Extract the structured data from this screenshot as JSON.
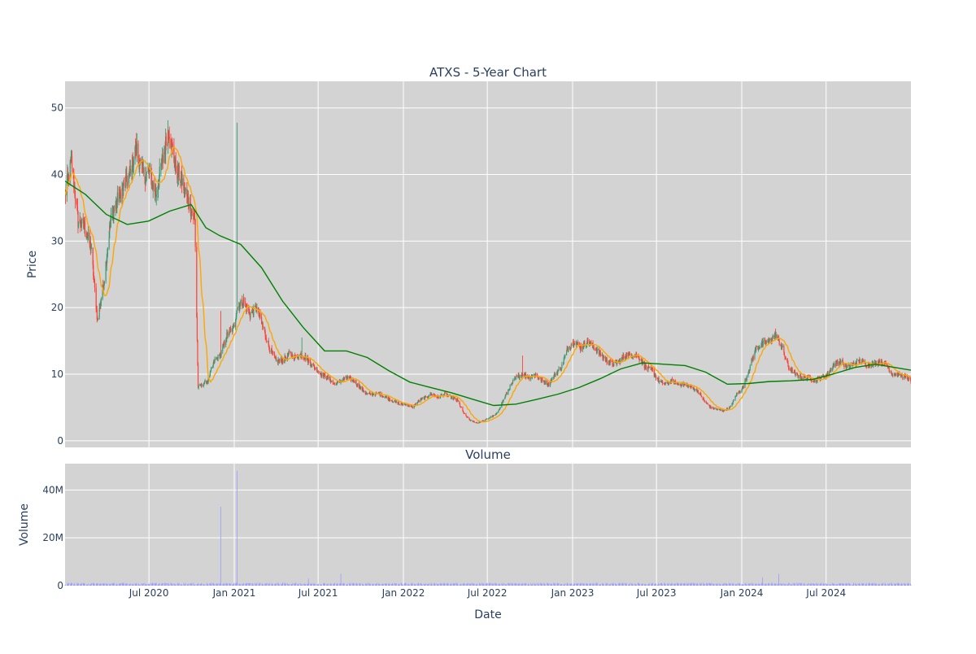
{
  "chart_data": {
    "type": "candlestick",
    "title": "ATXS - 5-Year Chart",
    "colors": {
      "up": "#3d9970",
      "down": "#ff4136",
      "ma_short": "#ffa500",
      "ma_long": "#008000",
      "volume": "#9d9dff",
      "plot_bg": "#d3d3d3",
      "grid": "#ffffff",
      "text": "#2a3f5f"
    },
    "price_panel": {
      "ylabel": "Price",
      "ylim": [
        -1,
        54
      ],
      "yticks": [
        0,
        10,
        20,
        30,
        40,
        50
      ],
      "anchors": [
        [
          "2020-01-02",
          37
        ],
        [
          "2020-01-16",
          42
        ],
        [
          "2020-01-30",
          33
        ],
        [
          "2020-02-13",
          32
        ],
        [
          "2020-02-27",
          29
        ],
        [
          "2020-03-12",
          18
        ],
        [
          "2020-03-26",
          24
        ],
        [
          "2020-04-09",
          33
        ],
        [
          "2020-04-23",
          36
        ],
        [
          "2020-05-07",
          38
        ],
        [
          "2020-05-21",
          40
        ],
        [
          "2020-06-04",
          44
        ],
        [
          "2020-06-18",
          40
        ],
        [
          "2020-07-02",
          40
        ],
        [
          "2020-07-16",
          37
        ],
        [
          "2020-07-30",
          42
        ],
        [
          "2020-08-13",
          47
        ],
        [
          "2020-08-27",
          41
        ],
        [
          "2020-09-10",
          39
        ],
        [
          "2020-09-24",
          36
        ],
        [
          "2020-10-08",
          33
        ],
        [
          "2020-10-15",
          8
        ],
        [
          "2020-11-05",
          9
        ],
        [
          "2020-11-19",
          12
        ],
        [
          "2020-12-03",
          13
        ],
        [
          "2020-12-17",
          16
        ],
        [
          "2020-12-31",
          17
        ],
        [
          "2021-01-07",
          20
        ],
        [
          "2021-01-21",
          21
        ],
        [
          "2021-02-04",
          19
        ],
        [
          "2021-02-18",
          20
        ],
        [
          "2021-03-04",
          17
        ],
        [
          "2021-03-18",
          14
        ],
        [
          "2021-04-01",
          12
        ],
        [
          "2021-04-15",
          12
        ],
        [
          "2021-04-29",
          13
        ],
        [
          "2021-05-13",
          12.5
        ],
        [
          "2021-05-27",
          13
        ],
        [
          "2021-06-10",
          12
        ],
        [
          "2021-06-24",
          11
        ],
        [
          "2021-07-08",
          10
        ],
        [
          "2021-07-22",
          9.5
        ],
        [
          "2021-08-05",
          8.5
        ],
        [
          "2021-08-19",
          9
        ],
        [
          "2021-09-02",
          9.5
        ],
        [
          "2021-09-16",
          9
        ],
        [
          "2021-09-30",
          8
        ],
        [
          "2021-10-14",
          7
        ],
        [
          "2021-10-28",
          7
        ],
        [
          "2021-11-11",
          7
        ],
        [
          "2021-11-25",
          6.5
        ],
        [
          "2021-12-09",
          6
        ],
        [
          "2021-12-23",
          5.5
        ],
        [
          "2022-01-06",
          5.5
        ],
        [
          "2022-01-20",
          5
        ],
        [
          "2022-02-03",
          6
        ],
        [
          "2022-02-17",
          6.5
        ],
        [
          "2022-03-03",
          7
        ],
        [
          "2022-03-17",
          6.5
        ],
        [
          "2022-03-31",
          7
        ],
        [
          "2022-04-14",
          6.5
        ],
        [
          "2022-04-28",
          6
        ],
        [
          "2022-05-12",
          4
        ],
        [
          "2022-05-26",
          3
        ],
        [
          "2022-06-09",
          2.7
        ],
        [
          "2022-06-23",
          3
        ],
        [
          "2022-07-07",
          3.5
        ],
        [
          "2022-07-21",
          4
        ],
        [
          "2022-08-04",
          6
        ],
        [
          "2022-08-18",
          8
        ],
        [
          "2022-09-01",
          9.5
        ],
        [
          "2022-09-15",
          10
        ],
        [
          "2022-09-29",
          9.5
        ],
        [
          "2022-10-13",
          10
        ],
        [
          "2022-10-27",
          9
        ],
        [
          "2022-11-10",
          8.5
        ],
        [
          "2022-11-24",
          10
        ],
        [
          "2022-12-08",
          11
        ],
        [
          "2022-12-22",
          14
        ],
        [
          "2023-01-05",
          15
        ],
        [
          "2023-01-19",
          14
        ],
        [
          "2023-02-02",
          15
        ],
        [
          "2023-02-16",
          14
        ],
        [
          "2023-03-02",
          13
        ],
        [
          "2023-03-16",
          12
        ],
        [
          "2023-03-30",
          11.5
        ],
        [
          "2023-04-13",
          12
        ],
        [
          "2023-04-27",
          13
        ],
        [
          "2023-05-11",
          13
        ],
        [
          "2023-05-25",
          12.5
        ],
        [
          "2023-06-08",
          11
        ],
        [
          "2023-06-22",
          10.5
        ],
        [
          "2023-07-06",
          9
        ],
        [
          "2023-07-20",
          8.5
        ],
        [
          "2023-08-03",
          9
        ],
        [
          "2023-08-17",
          8.5
        ],
        [
          "2023-08-31",
          8.5
        ],
        [
          "2023-09-14",
          8
        ],
        [
          "2023-09-28",
          7.5
        ],
        [
          "2023-10-12",
          6
        ],
        [
          "2023-10-26",
          5
        ],
        [
          "2023-11-09",
          4.7
        ],
        [
          "2023-11-23",
          4.5
        ],
        [
          "2023-12-07",
          5
        ],
        [
          "2023-12-21",
          7
        ],
        [
          "2024-01-04",
          8
        ],
        [
          "2024-01-18",
          11
        ],
        [
          "2024-02-01",
          14
        ],
        [
          "2024-02-15",
          14.5
        ],
        [
          "2024-02-29",
          15
        ],
        [
          "2024-03-14",
          16
        ],
        [
          "2024-03-28",
          14
        ],
        [
          "2024-04-11",
          11
        ],
        [
          "2024-04-25",
          10
        ],
        [
          "2024-05-09",
          9.5
        ],
        [
          "2024-05-23",
          9.5
        ],
        [
          "2024-06-06",
          9
        ],
        [
          "2024-06-20",
          9.5
        ],
        [
          "2024-07-04",
          10
        ],
        [
          "2024-07-18",
          11.5
        ],
        [
          "2024-08-01",
          12
        ],
        [
          "2024-08-15",
          11
        ],
        [
          "2024-08-29",
          11.5
        ],
        [
          "2024-09-12",
          12
        ],
        [
          "2024-09-26",
          11.5
        ],
        [
          "2024-10-10",
          11.5
        ],
        [
          "2024-10-24",
          12
        ],
        [
          "2024-11-07",
          11.5
        ],
        [
          "2024-11-21",
          10
        ],
        [
          "2024-12-05",
          10
        ],
        [
          "2024-12-19",
          9.5
        ],
        [
          "2024-12-31",
          9
        ]
      ],
      "ma_long": [
        [
          "2020-01-02",
          39
        ],
        [
          "2020-02-15",
          37
        ],
        [
          "2020-03-31",
          34
        ],
        [
          "2020-05-15",
          32.5
        ],
        [
          "2020-06-30",
          33
        ],
        [
          "2020-08-15",
          34.5
        ],
        [
          "2020-09-30",
          35.5
        ],
        [
          "2020-11-01",
          32
        ],
        [
          "2020-12-01",
          30.8
        ],
        [
          "2021-01-15",
          29.5
        ],
        [
          "2021-03-01",
          26
        ],
        [
          "2021-04-15",
          21
        ],
        [
          "2021-05-30",
          17
        ],
        [
          "2021-07-15",
          13.5
        ],
        [
          "2021-08-31",
          13.5
        ],
        [
          "2021-10-15",
          12.5
        ],
        [
          "2021-12-01",
          10.5
        ],
        [
          "2022-01-15",
          8.8
        ],
        [
          "2022-03-01",
          8
        ],
        [
          "2022-04-15",
          7.2
        ],
        [
          "2022-06-01",
          6.2
        ],
        [
          "2022-07-15",
          5.3
        ],
        [
          "2022-09-01",
          5.5
        ],
        [
          "2022-10-15",
          6.2
        ],
        [
          "2022-12-01",
          7
        ],
        [
          "2023-01-15",
          8
        ],
        [
          "2023-03-01",
          9.3
        ],
        [
          "2023-04-15",
          10.8
        ],
        [
          "2023-06-01",
          11.7
        ],
        [
          "2023-07-15",
          11.5
        ],
        [
          "2023-09-01",
          11.3
        ],
        [
          "2023-10-15",
          10.3
        ],
        [
          "2023-12-01",
          8.5
        ],
        [
          "2024-01-15",
          8.6
        ],
        [
          "2024-03-01",
          8.9
        ],
        [
          "2024-04-15",
          9
        ],
        [
          "2024-06-01",
          9.2
        ],
        [
          "2024-07-15",
          10
        ],
        [
          "2024-09-01",
          11
        ],
        [
          "2024-10-15",
          11.5
        ],
        [
          "2024-12-31",
          10.6
        ]
      ],
      "spikes": [
        {
          "date": "2020-12-03",
          "high": 19.5
        },
        {
          "date": "2021-01-07",
          "high": 47.8
        },
        {
          "date": "2021-05-27",
          "high": 15.5
        },
        {
          "date": "2022-09-15",
          "high": 12.8
        }
      ]
    },
    "volume_panel": {
      "title": "Volume",
      "ylabel": "Volume",
      "ylim": [
        0,
        51000000
      ],
      "yticks": [
        0,
        20000000,
        40000000
      ],
      "ytick_labels": [
        "0",
        "20M",
        "40M"
      ],
      "spikes": [
        {
          "date": "2020-12-03",
          "value": 33000000
        },
        {
          "date": "2021-01-07",
          "value": 48000000
        },
        {
          "date": "2021-06-10",
          "value": 3000000
        },
        {
          "date": "2021-08-19",
          "value": 5000000
        },
        {
          "date": "2024-02-15",
          "value": 3500000
        },
        {
          "date": "2024-03-21",
          "value": 5000000
        }
      ]
    },
    "xaxis": {
      "label": "Date",
      "range": [
        "2020-01-02",
        "2024-12-31"
      ],
      "ticks": [
        "2020-07-01",
        "2021-01-01",
        "2021-07-01",
        "2022-01-01",
        "2022-07-01",
        "2023-01-01",
        "2023-07-01",
        "2024-01-01",
        "2024-07-01"
      ],
      "tick_labels": [
        "Jul 2020",
        "Jan 2021",
        "Jul 2021",
        "Jan 2022",
        "Jul 2022",
        "Jan 2023",
        "Jul 2023",
        "Jan 2024",
        "Jul 2024"
      ]
    },
    "grid": true,
    "legend": "none"
  }
}
